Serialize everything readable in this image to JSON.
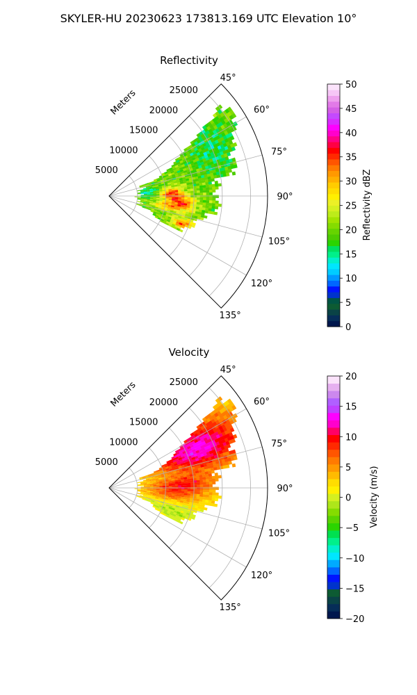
{
  "figure": {
    "suptitle": "SKYLER-HU  20230623  173813.169 UTC Elevation 10°"
  },
  "chart_data": [
    {
      "type": "heatmap",
      "subtype": "polar-sector (PPI)",
      "title": "Reflectivity",
      "range_label": "Meters",
      "range_ticks": [
        "5000",
        "10000",
        "15000",
        "20000",
        "25000"
      ],
      "range_tick_values": [
        5000,
        10000,
        15000,
        20000,
        25000
      ],
      "rmax": 28000,
      "angle_ticks": [
        "45°",
        "60°",
        "75°",
        "90°",
        "105°",
        "120°",
        "135°"
      ],
      "angle_tick_values": [
        45,
        60,
        75,
        90,
        105,
        120,
        135
      ],
      "theta_range": [
        45,
        135
      ],
      "grid": true,
      "colorbar": {
        "label": "Reflectivity dBZ",
        "ticks": [
          "0",
          "5",
          "10",
          "15",
          "20",
          "25",
          "30",
          "35",
          "40",
          "45",
          "50"
        ],
        "range": [
          0,
          50
        ],
        "colors": [
          "#00174d",
          "#062d58",
          "#0a4346",
          "#0d5b33",
          "#005544",
          "#0033cc",
          "#0014ff",
          "#0066ff",
          "#0099ff",
          "#00ccff",
          "#00e6ff",
          "#00f0cc",
          "#00f08a",
          "#00e060",
          "#2bd400",
          "#4dcc00",
          "#66d400",
          "#85dc00",
          "#a3e400",
          "#bdec1a",
          "#d6f020",
          "#ecf026",
          "#fff000",
          "#ffdd00",
          "#ffcc00",
          "#ffb000",
          "#ff9900",
          "#ff7a00",
          "#ff5500",
          "#ff2a00",
          "#ff0000",
          "#ff0044",
          "#ff0088",
          "#ff00cc",
          "#ff00ff",
          "#d92bff",
          "#c44aff",
          "#d45fe6",
          "#e27ae8",
          "#eea0ee",
          "#f6c6f6",
          "#fbe3fb"
        ]
      },
      "data_summary": "Radar echoes span roughly 50°–115° azimuth at 5–27 km range; mostly 15–30 dBZ with cores of 35–40 dBZ near 85–95° (10–14 km) and 110° (14 km)."
    },
    {
      "type": "heatmap",
      "subtype": "polar-sector (PPI)",
      "title": "Velocity",
      "range_label": "Meters",
      "range_ticks": [
        "5000",
        "10000",
        "15000",
        "20000",
        "25000"
      ],
      "range_tick_values": [
        5000,
        10000,
        15000,
        20000,
        25000
      ],
      "rmax": 28000,
      "angle_ticks": [
        "45°",
        "60°",
        "75°",
        "90°",
        "105°",
        "120°",
        "135°"
      ],
      "angle_tick_values": [
        45,
        60,
        75,
        90,
        105,
        120,
        135
      ],
      "theta_range": [
        45,
        135
      ],
      "grid": true,
      "colorbar": {
        "label": "Velocity (m/s)",
        "ticks": [
          "−20",
          "−15",
          "−10",
          "−5",
          "0",
          "5",
          "10",
          "15",
          "20"
        ],
        "range": [
          -20,
          20
        ],
        "colors": [
          "#00174d",
          "#062d58",
          "#0a4346",
          "#0d5b33",
          "#0033cc",
          "#0014ff",
          "#0066ff",
          "#00aaff",
          "#00e6ff",
          "#00f0cc",
          "#00f08a",
          "#00e050",
          "#2bd400",
          "#5ad400",
          "#85dc00",
          "#aee61a",
          "#d4f020",
          "#fff000",
          "#ffdd00",
          "#ffbb00",
          "#ff9900",
          "#ff7a00",
          "#ff5500",
          "#ff2a00",
          "#ff0000",
          "#ff0066",
          "#ff00cc",
          "#ff00ff",
          "#c040ff",
          "#b060ff",
          "#cc88ee",
          "#e6b0f0",
          "#fbe3fb"
        ]
      },
      "data_summary": "Inbound/outbound pattern: 10–15 m/s (magenta/purple) at 55–80° and 10–25 km; 5–10 m/s (orange/red) near 85–100°; 0–3 m/s (yellow) at 95–115°."
    }
  ]
}
